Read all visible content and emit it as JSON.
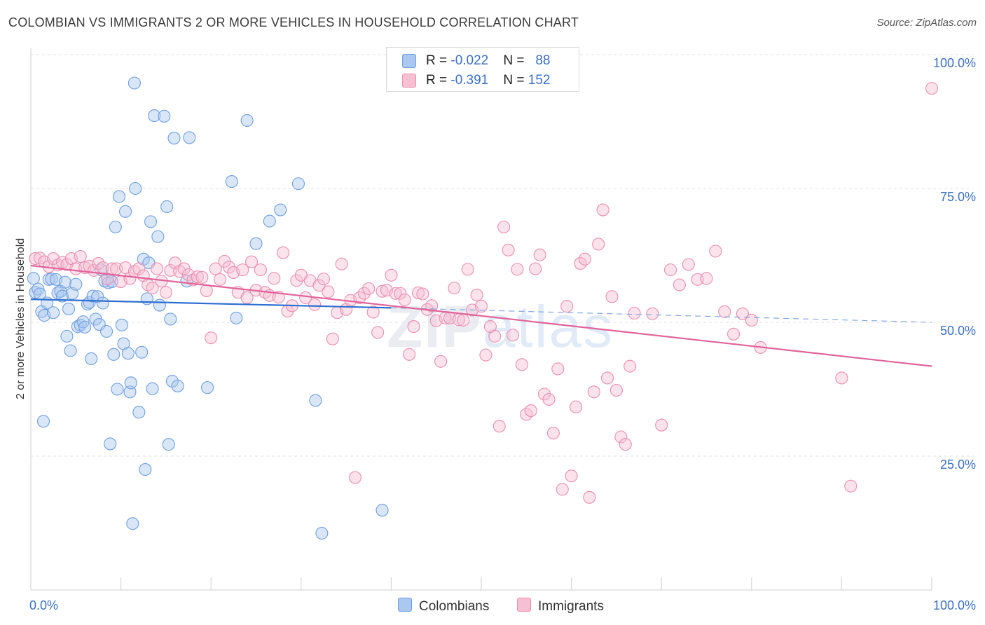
{
  "title": "COLOMBIAN VS IMMIGRANTS 2 OR MORE VEHICLES IN HOUSEHOLD CORRELATION CHART",
  "source": "Source: ZipAtlas.com",
  "watermark": {
    "zip": "ZIP",
    "atlas": "atlas"
  },
  "legend_top": [
    {
      "r_label": "R = ",
      "r_value": "-0.022",
      "n_label": "N = ",
      "n_value": "88",
      "color": "#aac8f0",
      "border": "#6f9fe0"
    },
    {
      "r_label": "R = ",
      "r_value": "-0.391",
      "n_label": "N = ",
      "n_value": "152",
      "color": "#f7bfd2",
      "border": "#ea8fb0"
    }
  ],
  "legend_bottom": [
    {
      "label": "Colombians",
      "color": "#aac8f0",
      "border": "#6f9fe0"
    },
    {
      "label": "Immigrants",
      "color": "#f7bfd2",
      "border": "#ea8fb0"
    }
  ],
  "chart_data": {
    "type": "scatter",
    "title": "COLOMBIAN VS IMMIGRANTS 2 OR MORE VEHICLES IN HOUSEHOLD CORRELATION CHART",
    "xlabel": "",
    "ylabel": "2 or more Vehicles in Household",
    "xlim": [
      0,
      100
    ],
    "ylim": [
      0,
      100
    ],
    "x_tick_labels": [
      "0.0%",
      "100.0%"
    ],
    "y_ticks": [
      25,
      50,
      75,
      100
    ],
    "y_tick_labels": [
      "25.0%",
      "50.0%",
      "75.0%",
      "100.0%"
    ],
    "grid": true,
    "legend_position": "top-center",
    "series": [
      {
        "name": "Colombians",
        "color": "#6f9fe0",
        "fill": "rgba(170,200,240,0.45)",
        "trend": {
          "x": [
            0,
            40
          ],
          "y": [
            54.3,
            52.7
          ],
          "dashed_to": [
            100,
            50.0
          ]
        },
        "points": [
          [
            0.3,
            58.2
          ],
          [
            0.5,
            55.6
          ],
          [
            0.8,
            56.2
          ],
          [
            1.0,
            55.3
          ],
          [
            1.2,
            52.0
          ],
          [
            1.4,
            31.5
          ],
          [
            1.5,
            51.3
          ],
          [
            1.8,
            53.6
          ],
          [
            2.0,
            58.0
          ],
          [
            2.3,
            58.1
          ],
          [
            2.5,
            51.8
          ],
          [
            2.8,
            58.0
          ],
          [
            3.0,
            55.5
          ],
          [
            3.3,
            55.8
          ],
          [
            3.5,
            54.9
          ],
          [
            3.8,
            57.5
          ],
          [
            4.0,
            47.4
          ],
          [
            4.2,
            52.5
          ],
          [
            4.4,
            44.7
          ],
          [
            4.6,
            55.4
          ],
          [
            5.0,
            57.1
          ],
          [
            5.2,
            49.2
          ],
          [
            5.5,
            49.5
          ],
          [
            5.8,
            50.1
          ],
          [
            6.0,
            49.1
          ],
          [
            6.3,
            53.4
          ],
          [
            6.5,
            53.7
          ],
          [
            6.7,
            43.2
          ],
          [
            6.9,
            54.9
          ],
          [
            7.2,
            50.6
          ],
          [
            7.4,
            54.8
          ],
          [
            7.6,
            49.6
          ],
          [
            7.8,
            59.8
          ],
          [
            8.0,
            53.6
          ],
          [
            8.2,
            57.7
          ],
          [
            8.4,
            48.3
          ],
          [
            8.6,
            57.4
          ],
          [
            8.8,
            27.3
          ],
          [
            9.0,
            57.6
          ],
          [
            9.2,
            44.0
          ],
          [
            9.4,
            67.8
          ],
          [
            9.6,
            37.5
          ],
          [
            9.8,
            73.5
          ],
          [
            10.1,
            49.5
          ],
          [
            10.3,
            46.0
          ],
          [
            10.5,
            70.7
          ],
          [
            10.8,
            44.2
          ],
          [
            11.0,
            37.0
          ],
          [
            11.1,
            38.7
          ],
          [
            11.3,
            12.4
          ],
          [
            11.5,
            94.7
          ],
          [
            11.6,
            75.0
          ],
          [
            12.0,
            33.2
          ],
          [
            12.3,
            44.4
          ],
          [
            12.5,
            61.8
          ],
          [
            12.7,
            22.5
          ],
          [
            12.9,
            54.4
          ],
          [
            13.1,
            61.1
          ],
          [
            13.3,
            68.8
          ],
          [
            13.5,
            37.6
          ],
          [
            13.7,
            88.6
          ],
          [
            14.1,
            66.0
          ],
          [
            14.3,
            53.2
          ],
          [
            14.8,
            88.5
          ],
          [
            15.1,
            71.6
          ],
          [
            15.3,
            27.2
          ],
          [
            15.5,
            50.6
          ],
          [
            15.7,
            39.0
          ],
          [
            15.9,
            84.4
          ],
          [
            16.3,
            38.1
          ],
          [
            17.3,
            57.7
          ],
          [
            17.6,
            84.5
          ],
          [
            19.6,
            37.8
          ],
          [
            22.3,
            76.3
          ],
          [
            22.8,
            50.8
          ],
          [
            24.0,
            87.7
          ],
          [
            25.0,
            64.7
          ],
          [
            26.5,
            68.9
          ],
          [
            27.7,
            71.0
          ],
          [
            29.7,
            75.9
          ],
          [
            31.6,
            35.4
          ],
          [
            32.3,
            10.6
          ],
          [
            39.0,
            14.9
          ]
        ]
      },
      {
        "name": "Immigrants",
        "color": "#ea8fb0",
        "fill": "rgba(247,191,210,0.45)",
        "trend": {
          "x": [
            0,
            100
          ],
          "y": [
            60.6,
            41.8
          ]
        },
        "points": [
          [
            0.5,
            61.9
          ],
          [
            1.0,
            62.0
          ],
          [
            1.5,
            61.3
          ],
          [
            2.0,
            60.4
          ],
          [
            2.5,
            61.9
          ],
          [
            3.0,
            60.7
          ],
          [
            3.5,
            61.2
          ],
          [
            4.0,
            60.8
          ],
          [
            4.5,
            61.9
          ],
          [
            5.0,
            60.0
          ],
          [
            5.5,
            62.3
          ],
          [
            6.0,
            60.2
          ],
          [
            6.5,
            60.5
          ],
          [
            7.0,
            59.7
          ],
          [
            7.5,
            61.0
          ],
          [
            8.0,
            60.2
          ],
          [
            8.5,
            58.1
          ],
          [
            9.0,
            60.0
          ],
          [
            9.5,
            60.0
          ],
          [
            10.0,
            57.6
          ],
          [
            10.5,
            60.2
          ],
          [
            11.0,
            58.2
          ],
          [
            11.5,
            59.5
          ],
          [
            12.0,
            60.0
          ],
          [
            12.5,
            58.7
          ],
          [
            13.0,
            57.0
          ],
          [
            13.5,
            56.4
          ],
          [
            14.0,
            60.0
          ],
          [
            14.5,
            57.7
          ],
          [
            15.0,
            55.6
          ],
          [
            15.5,
            59.7
          ],
          [
            16.0,
            61.1
          ],
          [
            16.5,
            59.5
          ],
          [
            17.0,
            60.0
          ],
          [
            17.5,
            58.9
          ],
          [
            18.0,
            57.9
          ],
          [
            18.5,
            58.5
          ],
          [
            19.0,
            58.4
          ],
          [
            19.5,
            55.9
          ],
          [
            20.0,
            47.1
          ],
          [
            20.5,
            60.0
          ],
          [
            21.0,
            58.0
          ],
          [
            21.5,
            61.4
          ],
          [
            22.0,
            60.3
          ],
          [
            22.5,
            59.3
          ],
          [
            23.0,
            55.6
          ],
          [
            23.5,
            59.8
          ],
          [
            24.0,
            54.6
          ],
          [
            24.5,
            61.3
          ],
          [
            25.0,
            56.0
          ],
          [
            25.5,
            59.8
          ],
          [
            26.0,
            55.6
          ],
          [
            26.5,
            55.0
          ],
          [
            27.0,
            58.2
          ],
          [
            27.5,
            54.7
          ],
          [
            28.0,
            63.0
          ],
          [
            28.5,
            52.1
          ],
          [
            29.0,
            53.1
          ],
          [
            29.5,
            57.8
          ],
          [
            30.0,
            58.8
          ],
          [
            30.5,
            54.6
          ],
          [
            31.0,
            57.8
          ],
          [
            31.5,
            53.3
          ],
          [
            32.0,
            56.9
          ],
          [
            32.5,
            58.1
          ],
          [
            33.0,
            55.7
          ],
          [
            33.5,
            46.9
          ],
          [
            34.0,
            51.8
          ],
          [
            34.5,
            60.9
          ],
          [
            35.0,
            52.4
          ],
          [
            35.5,
            54.1
          ],
          [
            36.0,
            21.0
          ],
          [
            36.5,
            54.6
          ],
          [
            37.0,
            55.4
          ],
          [
            37.5,
            56.3
          ],
          [
            38.0,
            51.9
          ],
          [
            38.5,
            48.1
          ],
          [
            39.0,
            55.8
          ],
          [
            39.5,
            56.0
          ],
          [
            40.0,
            58.8
          ],
          [
            40.5,
            55.4
          ],
          [
            41.0,
            55.4
          ],
          [
            41.5,
            54.2
          ],
          [
            42.0,
            44.0
          ],
          [
            42.5,
            49.2
          ],
          [
            43.0,
            55.5
          ],
          [
            43.5,
            55.3
          ],
          [
            44.0,
            52.4
          ],
          [
            44.5,
            53.1
          ],
          [
            45.0,
            50.3
          ],
          [
            45.5,
            42.7
          ],
          [
            46.0,
            50.8
          ],
          [
            46.5,
            50.8
          ],
          [
            47.0,
            56.4
          ],
          [
            47.5,
            50.5
          ],
          [
            48.0,
            50.4
          ],
          [
            48.5,
            59.9
          ],
          [
            49.0,
            52.3
          ],
          [
            49.5,
            55.1
          ],
          [
            50.0,
            53.0
          ],
          [
            50.5,
            43.9
          ],
          [
            51.0,
            49.2
          ],
          [
            51.5,
            47.4
          ],
          [
            52.0,
            30.6
          ],
          [
            52.5,
            67.8
          ],
          [
            53.0,
            63.5
          ],
          [
            53.5,
            47.6
          ],
          [
            54.0,
            59.9
          ],
          [
            54.5,
            42.1
          ],
          [
            55.0,
            32.8
          ],
          [
            55.5,
            33.5
          ],
          [
            56.0,
            60.0
          ],
          [
            56.5,
            62.6
          ],
          [
            57.0,
            36.6
          ],
          [
            57.5,
            35.6
          ],
          [
            58.0,
            29.3
          ],
          [
            58.5,
            41.3
          ],
          [
            59.0,
            18.8
          ],
          [
            59.5,
            53.0
          ],
          [
            60.0,
            21.3
          ],
          [
            60.5,
            34.2
          ],
          [
            61.0,
            61.0
          ],
          [
            61.5,
            61.8
          ],
          [
            62.0,
            17.3
          ],
          [
            62.5,
            37.0
          ],
          [
            63.0,
            64.6
          ],
          [
            63.5,
            71.0
          ],
          [
            64.0,
            39.6
          ],
          [
            64.5,
            54.8
          ],
          [
            65.0,
            37.3
          ],
          [
            65.5,
            28.6
          ],
          [
            66.0,
            27.2
          ],
          [
            66.5,
            41.8
          ],
          [
            67.0,
            51.7
          ],
          [
            69.0,
            51.6
          ],
          [
            70.0,
            30.8
          ],
          [
            71.0,
            59.8
          ],
          [
            72.0,
            57.0
          ],
          [
            73.0,
            60.8
          ],
          [
            74.0,
            58.0
          ],
          [
            75.0,
            58.2
          ],
          [
            76.0,
            63.3
          ],
          [
            77.0,
            52.0
          ],
          [
            78.0,
            47.8
          ],
          [
            79.0,
            51.6
          ],
          [
            80.0,
            50.4
          ],
          [
            81.0,
            45.3
          ],
          [
            90.0,
            39.6
          ],
          [
            91.0,
            19.4
          ],
          [
            100.0,
            93.7
          ]
        ]
      }
    ]
  }
}
